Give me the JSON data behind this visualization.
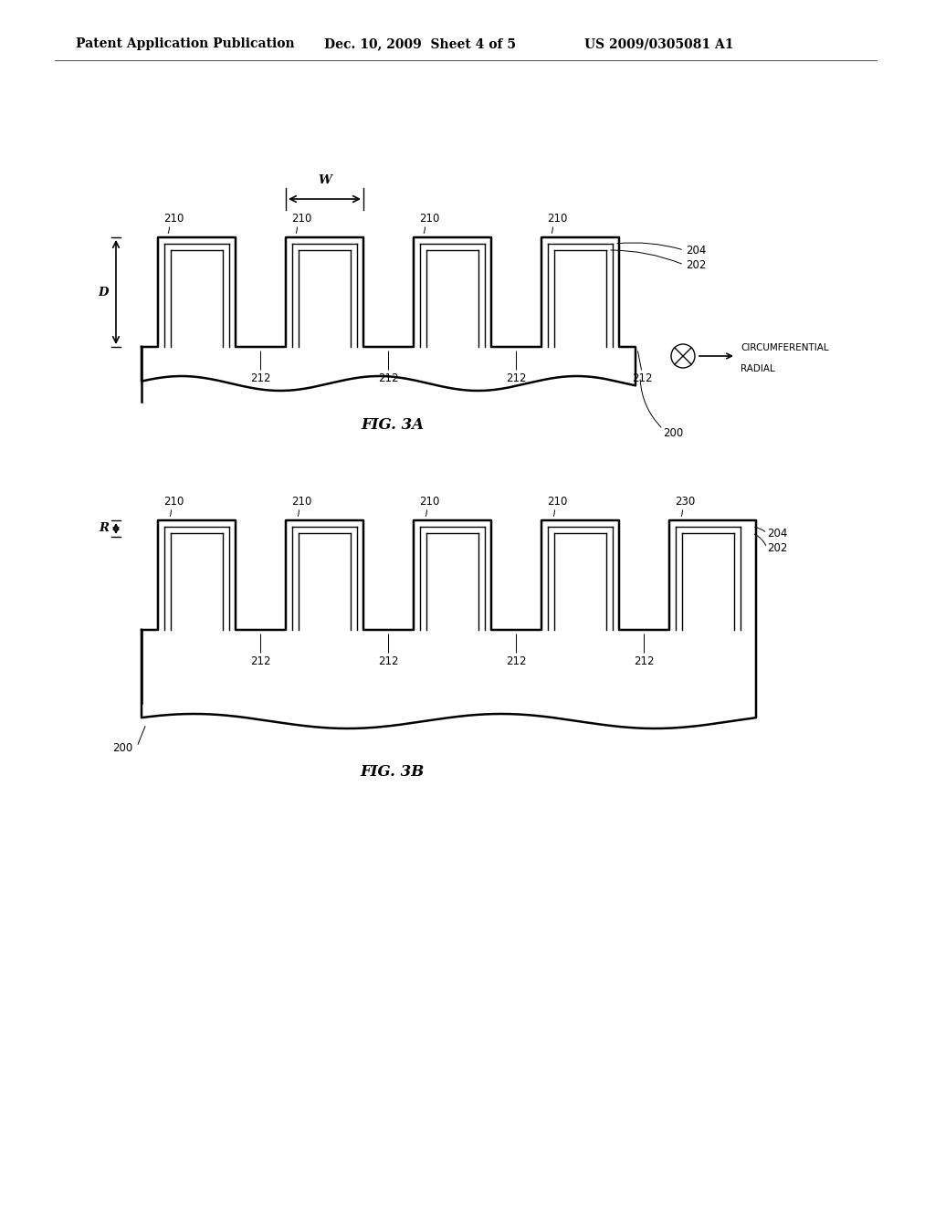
{
  "bg_color": "#ffffff",
  "header_text1": "Patent Application Publication",
  "header_text2": "Dec. 10, 2009  Sheet 4 of 5",
  "header_text3": "US 2009/0305081 A1",
  "fig3a_label": "FIG. 3A",
  "fig3b_label": "FIG. 3B",
  "line_color": "#000000",
  "font_size_header": 10,
  "font_size_labels": 8.5,
  "font_size_fig": 12
}
